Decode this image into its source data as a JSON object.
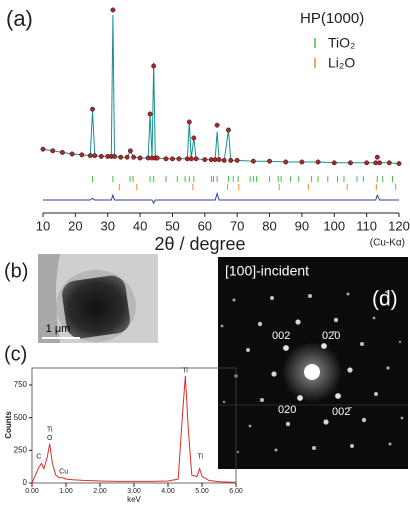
{
  "chart_data": [
    {
      "type": "line",
      "panel_label": "(a)",
      "legend_title": "HP(1000)",
      "x": [
        10,
        13,
        16,
        19,
        22,
        24.6,
        25.3,
        26,
        28,
        30,
        31.1,
        31.6,
        32.1,
        34,
        36,
        37,
        38,
        40,
        42.5,
        43.1,
        43.7,
        44.2,
        44.7,
        45.3,
        48,
        50,
        52,
        54.6,
        55.2,
        55.8,
        56.6,
        57.3,
        60,
        62,
        63.2,
        63.8,
        64.4,
        66,
        67.3,
        68,
        70,
        75,
        80,
        85,
        90,
        95,
        100,
        105,
        110,
        112.8,
        113.3,
        114,
        117,
        120
      ],
      "series": [
        {
          "color": "#a52a2a",
          "markers": true,
          "values": [
            13,
            12,
            11,
            10,
            9.5,
            9,
            38,
            9,
            8.5,
            8.5,
            8.5,
            100,
            8.5,
            8,
            8,
            12,
            8,
            7.5,
            7.5,
            35,
            7.5,
            65,
            7.5,
            7.5,
            7,
            7,
            7,
            7,
            30,
            7,
            20,
            7,
            6.5,
            6.5,
            6.5,
            28,
            6.5,
            6,
            25,
            6,
            6,
            5.5,
            5.5,
            5,
            5,
            5,
            4.5,
            4.5,
            4.5,
            4.5,
            8,
            4.5,
            4.5,
            4
          ]
        },
        {
          "color": "#1b8f8f",
          "values": [
            13,
            12,
            11,
            10,
            9.5,
            9,
            37,
            9,
            8.5,
            8.5,
            8.5,
            97,
            8.5,
            8,
            8,
            12,
            8,
            7.5,
            7.5,
            35,
            7.5,
            67,
            7.5,
            7.5,
            7,
            7,
            7,
            7,
            30,
            7,
            20,
            7,
            6.5,
            6.5,
            6.5,
            24,
            6.5,
            6,
            25,
            6,
            6,
            5.5,
            5.5,
            5,
            5,
            5,
            4.5,
            4.5,
            4.5,
            4.5,
            5,
            4.5,
            4.5,
            4
          ]
        }
      ],
      "difference": {
        "color": "#2f3fa0",
        "values": [
          0,
          0,
          0,
          0,
          0,
          0,
          1,
          0,
          0,
          0,
          0,
          3,
          0,
          0,
          0,
          0,
          0,
          0,
          0,
          0,
          0,
          -2,
          0,
          0,
          0,
          0,
          0,
          0,
          0,
          0,
          0,
          0,
          0,
          0,
          0,
          4,
          0,
          0,
          0,
          0,
          0,
          0,
          0,
          0,
          0,
          0,
          0,
          0,
          0,
          0,
          3,
          0,
          0,
          0
        ]
      },
      "reflections": [
        {
          "name": "TiO₂",
          "color": "#4cba4c",
          "positions": [
            25.3,
            31.6,
            36.9,
            37.8,
            43.1,
            44.2,
            48,
            51.5,
            53.9,
            55.2,
            56.6,
            62.1,
            62.7,
            63.8,
            67.3,
            68.8,
            70.3,
            74,
            75,
            76,
            80,
            82.7,
            83.6,
            86.5,
            89,
            93,
            95,
            98,
            101,
            103,
            107,
            109,
            113.3,
            115,
            118
          ]
        },
        {
          "name": "Li₂O",
          "color": "#f08a30",
          "positions": [
            33.6,
            39,
            56.3,
            67,
            70.5,
            83,
            92,
            104,
            113,
            119
          ]
        }
      ],
      "xlim": [
        10,
        120
      ],
      "xticks": [
        10,
        20,
        30,
        40,
        50,
        60,
        70,
        80,
        90,
        100,
        110,
        120
      ],
      "ylim": [
        0,
        100
      ],
      "xlabel": "2θ / degree",
      "radiation": "(Cu-Kα)"
    },
    {
      "type": "line",
      "panel_label": "(c)",
      "color": "#d9302a",
      "x": [
        0,
        0.1,
        0.2,
        0.28,
        0.35,
        0.45,
        0.52,
        0.6,
        0.7,
        0.8,
        0.93,
        1.0,
        1.2,
        1.5,
        2,
        2.5,
        3,
        3.5,
        4,
        4.3,
        4.42,
        4.51,
        4.6,
        4.7,
        4.85,
        4.93,
        5.0,
        5.2,
        5.5,
        6
      ],
      "values": [
        0,
        60,
        120,
        150,
        110,
        200,
        300,
        150,
        60,
        40,
        40,
        30,
        25,
        20,
        15,
        12,
        12,
        12,
        15,
        30,
        500,
        820,
        400,
        60,
        50,
        110,
        50,
        20,
        10,
        5
      ],
      "xlim": [
        0,
        6
      ],
      "xticks": [
        {
          "value": 0,
          "label": "0.00"
        },
        {
          "value": 1,
          "label": "1.00"
        },
        {
          "value": 2,
          "label": "2.00"
        },
        {
          "value": 3,
          "label": "3.00"
        },
        {
          "value": 4,
          "label": "4.00"
        },
        {
          "value": 5,
          "label": "5.00"
        },
        {
          "value": 6,
          "label": "6.00"
        }
      ],
      "ylim": [
        0,
        880
      ],
      "yticks": [
        0,
        250,
        500,
        750
      ],
      "xlabel": "keV",
      "ylabel": "Counts",
      "annotations": [
        {
          "text": "C",
          "x": 0.2,
          "y": 200
        },
        {
          "text": "Ti",
          "x": 0.52,
          "y": 410
        },
        {
          "text": "O",
          "x": 0.52,
          "y": 345
        },
        {
          "text": "Cu",
          "x": 0.93,
          "y": 85
        },
        {
          "text": "Ti",
          "x": 4.5,
          "y": 860
        },
        {
          "text": "Ti",
          "x": 4.95,
          "y": 200
        }
      ]
    }
  ],
  "images": [
    {
      "panel_label": "(b)",
      "scale_bar": "1 μm"
    },
    {
      "panel_label": "(d)",
      "title": "[100]-incident",
      "spot_labels": [
        "002",
        "02̄0",
        "020",
        "002̄"
      ]
    }
  ]
}
